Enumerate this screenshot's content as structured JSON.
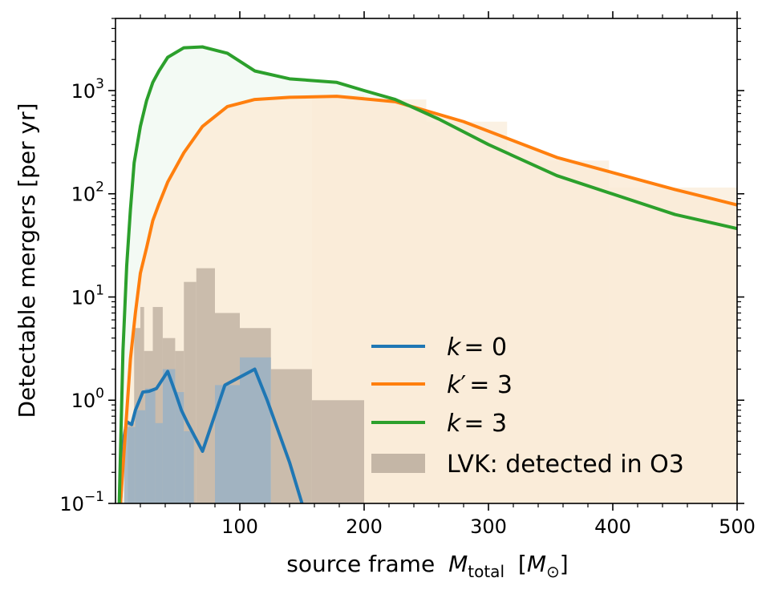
{
  "chart_data": {
    "type": "line",
    "xlabel": "source frame",
    "xlabel_math": "M",
    "xlabel_sub": "total",
    "xlabel_unit_open": "[",
    "xlabel_unit": "M",
    "xlabel_unit_sub": "⊙",
    "xlabel_unit_close": "]",
    "ylabel": "Detectable mergers [per yr]",
    "yscale": "log",
    "xlim": [
      0,
      500
    ],
    "ylim": [
      0.1,
      5000
    ],
    "xticks": [
      100,
      200,
      300,
      400,
      500
    ],
    "xtick_labels": [
      "100",
      "200",
      "300",
      "400",
      "500"
    ],
    "yticks": [
      0.1,
      1,
      10,
      100,
      1000
    ],
    "ytick_labels": [
      {
        "base": "10",
        "exp": "−1"
      },
      {
        "base": "10",
        "exp": "0"
      },
      {
        "base": "10",
        "exp": "1"
      },
      {
        "base": "10",
        "exp": "2"
      },
      {
        "base": "10",
        "exp": "3"
      }
    ],
    "colors": {
      "k0": "#1f77b4",
      "kprime3": "#ff7f0e",
      "k3": "#2ca02c",
      "lvk": "#c4b6a6",
      "k0_fill": "#9ab2c4",
      "orange_fill": "#faebd7",
      "green_fill": "#f3faf4"
    },
    "series": [
      {
        "name": "k = 0",
        "label_var": "k",
        "label_prime": "",
        "label_val": "= 0",
        "color": "#1f77b4",
        "x": [
          4,
          7,
          9,
          13,
          16,
          22,
          27,
          33,
          42,
          48,
          53,
          58,
          70,
          88,
          112,
          122,
          140,
          150,
          160
        ],
        "y": [
          0.1,
          0.45,
          0.62,
          0.58,
          0.8,
          1.2,
          1.22,
          1.3,
          1.9,
          1.2,
          0.8,
          0.6,
          0.32,
          1.4,
          2.0,
          1.0,
          0.25,
          0.1,
          0.05
        ]
      },
      {
        "name": "k' = 3",
        "label_var": "k",
        "label_prime": "′",
        "label_val": "= 3",
        "color": "#ff7f0e",
        "x": [
          4,
          8,
          12,
          16,
          20,
          25,
          30,
          35,
          42,
          55,
          70,
          90,
          112,
          140,
          178,
          225,
          280,
          355,
          450,
          500
        ],
        "y": [
          0.1,
          0.5,
          2.5,
          7,
          17,
          30,
          55,
          80,
          130,
          250,
          450,
          700,
          820,
          860,
          880,
          780,
          500,
          225,
          110,
          78
        ]
      },
      {
        "name": "k = 3",
        "label_var": "k",
        "label_prime": "",
        "label_val": "= 3",
        "color": "#2ca02c",
        "x": [
          3,
          6,
          9,
          12,
          15,
          20,
          25,
          30,
          35,
          42,
          55,
          70,
          90,
          112,
          140,
          178,
          200,
          225,
          260,
          300,
          355,
          450,
          500
        ],
        "y": [
          0.1,
          3,
          20,
          70,
          200,
          450,
          800,
          1200,
          1550,
          2100,
          2600,
          2650,
          2300,
          1550,
          1300,
          1200,
          1000,
          820,
          530,
          300,
          150,
          63,
          46
        ]
      }
    ],
    "lvk_histogram": {
      "name": "LVK: detected in O3",
      "color": "#c4b6a6",
      "bins": [
        {
          "x0": 10,
          "x1": 15,
          "y": 0.6
        },
        {
          "x0": 15,
          "x1": 20,
          "y": 5
        },
        {
          "x0": 20,
          "x1": 23,
          "y": 8
        },
        {
          "x0": 23,
          "x1": 30,
          "y": 3
        },
        {
          "x0": 30,
          "x1": 38,
          "y": 8
        },
        {
          "x0": 38,
          "x1": 48,
          "y": 4
        },
        {
          "x0": 48,
          "x1": 55,
          "y": 3
        },
        {
          "x0": 55,
          "x1": 65,
          "y": 14
        },
        {
          "x0": 65,
          "x1": 80,
          "y": 19
        },
        {
          "x0": 80,
          "x1": 100,
          "y": 7
        },
        {
          "x0": 100,
          "x1": 125,
          "y": 5
        },
        {
          "x0": 125,
          "x1": 158,
          "y": 2
        },
        {
          "x0": 158,
          "x1": 200,
          "y": 1
        }
      ]
    },
    "k0_histogram": {
      "color": "#9ab2c4",
      "bins": [
        {
          "x0": 7,
          "x1": 16,
          "y": 0.55
        },
        {
          "x0": 16,
          "x1": 24,
          "y": 0.8
        },
        {
          "x0": 24,
          "x1": 32,
          "y": 1.3
        },
        {
          "x0": 32,
          "x1": 38,
          "y": 0.6
        },
        {
          "x0": 38,
          "x1": 48,
          "y": 2.0
        },
        {
          "x0": 48,
          "x1": 55,
          "y": 1.2
        },
        {
          "x0": 55,
          "x1": 63,
          "y": 0.5
        },
        {
          "x0": 80,
          "x1": 100,
          "y": 1.4
        },
        {
          "x0": 100,
          "x1": 125,
          "y": 2.6
        }
      ]
    },
    "kprime_histogram": {
      "color": "#faebd7",
      "bins": [
        {
          "x0": 158,
          "x1": 200,
          "y": 900
        },
        {
          "x0": 200,
          "x1": 250,
          "y": 820
        },
        {
          "x0": 250,
          "x1": 315,
          "y": 500
        },
        {
          "x0": 315,
          "x1": 397,
          "y": 210
        },
        {
          "x0": 397,
          "x1": 500,
          "y": 115
        }
      ]
    },
    "legend": {
      "placement": "lower-right",
      "entries": [
        "k = 0",
        "k' = 3",
        "k = 3",
        "LVK: detected in O3"
      ]
    }
  }
}
